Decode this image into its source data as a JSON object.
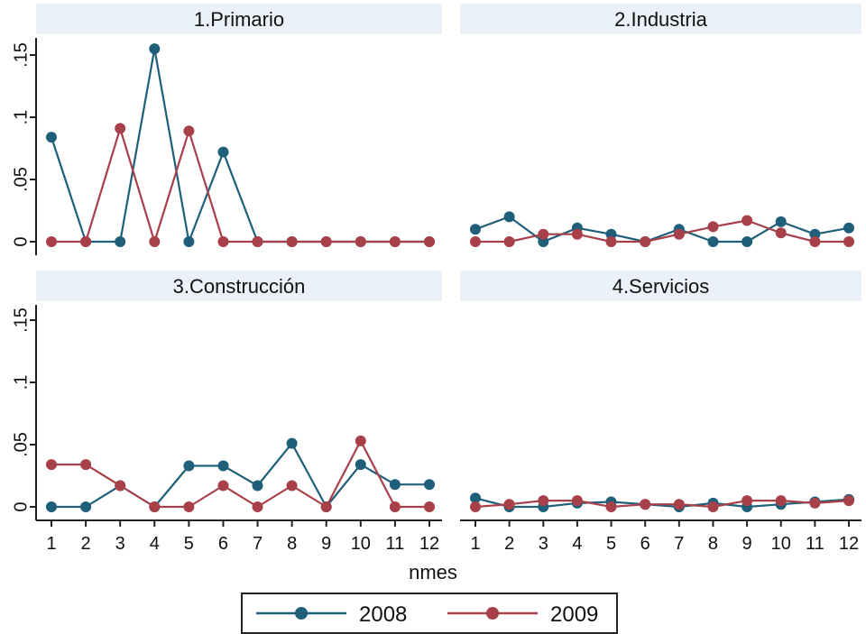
{
  "chart_data": {
    "type": "line",
    "xlabel": "nmes",
    "ylabel": "",
    "x": [
      1,
      2,
      3,
      4,
      5,
      6,
      7,
      8,
      9,
      10,
      11,
      12
    ],
    "ylim": [
      0,
      0.15
    ],
    "y_ticks": [
      0,
      0.05,
      0.1,
      0.15
    ],
    "y_tick_labels": [
      "0",
      ".05",
      ".1",
      ".15"
    ],
    "x_tick_labels": [
      "1",
      "2",
      "3",
      "4",
      "5",
      "6",
      "7",
      "8",
      "9",
      "10",
      "11",
      "12"
    ],
    "legend": {
      "position": "bottom",
      "entries": [
        "2008",
        "2009"
      ]
    },
    "colors": {
      "2008": "#1f5f7a",
      "2009": "#a8404a",
      "panel_header": "#eaf1f8"
    },
    "panels": [
      {
        "title": "1.Primario",
        "series": [
          {
            "name": "2008",
            "values": [
              0.084,
              0,
              0,
              0.155,
              0,
              0.072,
              0,
              0,
              0,
              0,
              0,
              0
            ]
          },
          {
            "name": "2009",
            "values": [
              0,
              0,
              0.091,
              0,
              0.089,
              0,
              0,
              0,
              0,
              0,
              0,
              0
            ]
          }
        ]
      },
      {
        "title": "2.Industria",
        "series": [
          {
            "name": "2008",
            "values": [
              0.01,
              0.02,
              0,
              0.011,
              0.006,
              0,
              0.01,
              0,
              0,
              0.016,
              0.006,
              0.011
            ]
          },
          {
            "name": "2009",
            "values": [
              0,
              0,
              0.006,
              0.006,
              0,
              0,
              0.006,
              0.012,
              0.017,
              0.007,
              0,
              0
            ]
          }
        ]
      },
      {
        "title": "3.Construcción",
        "series": [
          {
            "name": "2008",
            "values": [
              0,
              0,
              0.017,
              0,
              0.033,
              0.033,
              0.017,
              0.051,
              0,
              0.034,
              0.018,
              0.018
            ]
          },
          {
            "name": "2009",
            "values": [
              0.034,
              0.034,
              0.017,
              0,
              0,
              0.017,
              0,
              0.017,
              0,
              0.053,
              0,
              0
            ]
          }
        ]
      },
      {
        "title": "4.Servicios",
        "series": [
          {
            "name": "2008",
            "values": [
              0.007,
              0,
              0,
              0.003,
              0.004,
              0.002,
              0,
              0.003,
              0,
              0.002,
              0.004,
              0.006
            ]
          },
          {
            "name": "2009",
            "values": [
              0,
              0.002,
              0.005,
              0.005,
              0,
              0.002,
              0.002,
              0,
              0.005,
              0.005,
              0.003,
              0.005
            ]
          }
        ]
      }
    ]
  }
}
